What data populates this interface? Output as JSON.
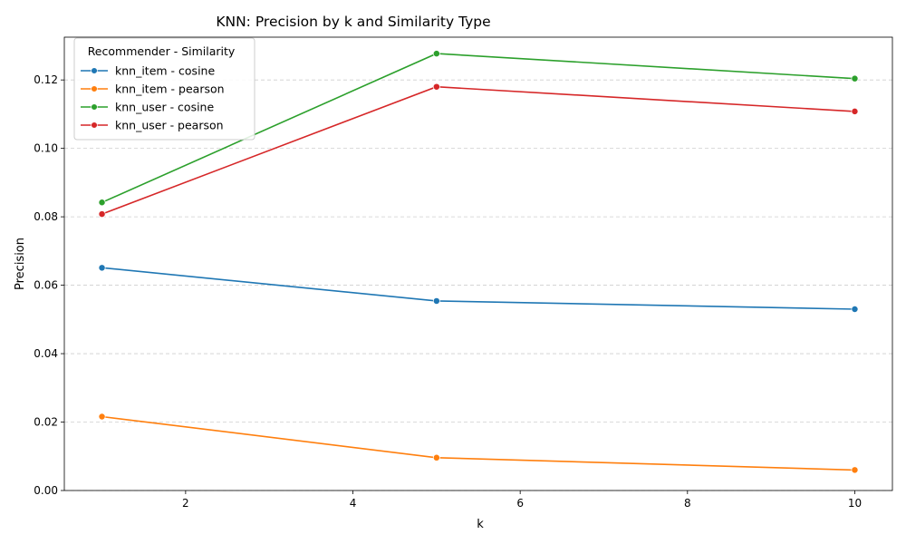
{
  "chart_data": {
    "type": "line",
    "title": "KNN: Precision by k and Similarity Type",
    "xlabel": "k",
    "ylabel": "Precision",
    "xlim": [
      0.55,
      10.45
    ],
    "ylim": [
      0.0,
      0.1325
    ],
    "xticks": [
      2,
      4,
      6,
      8,
      10
    ],
    "yticks": [
      0.0,
      0.02,
      0.04,
      0.06,
      0.08,
      0.1,
      0.12
    ],
    "ytick_labels": [
      "0.00",
      "0.02",
      "0.04",
      "0.06",
      "0.08",
      "0.10",
      "0.12"
    ],
    "grid": "y-dashed",
    "legend": {
      "title": "Recommender - Similarity",
      "placement": "top-left"
    },
    "x": [
      1,
      5,
      10
    ],
    "series": [
      {
        "name": "knn_item - cosine",
        "color": "#1f77b4",
        "values": [
          0.0651,
          0.0554,
          0.053
        ]
      },
      {
        "name": "knn_item - pearson",
        "color": "#ff7f0e",
        "values": [
          0.0216,
          0.0096,
          0.006
        ]
      },
      {
        "name": "knn_user - cosine",
        "color": "#2ca02c",
        "values": [
          0.0842,
          0.1277,
          0.1204
        ]
      },
      {
        "name": "knn_user - pearson",
        "color": "#d62728",
        "values": [
          0.0808,
          0.118,
          0.1108
        ]
      }
    ]
  }
}
